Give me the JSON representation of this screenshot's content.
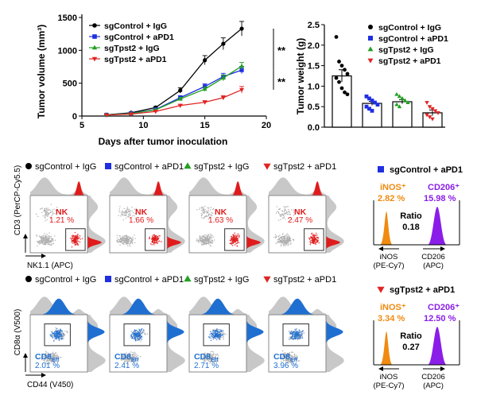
{
  "chart_data": [
    {
      "type": "line",
      "ylabel": "Tumor volume (mm³)",
      "xlabel": "Days after tumor inoculation",
      "xlim": [
        5,
        20
      ],
      "ylim": [
        0,
        1500
      ],
      "x_ticks": [
        "5",
        "10",
        "15",
        "20"
      ],
      "y_ticks": [
        "0",
        "500",
        "1000",
        "1500"
      ],
      "x": [
        7,
        9,
        11,
        13,
        15,
        16.5,
        18
      ],
      "series": [
        {
          "name": "sgControl + IgG",
          "color": "#000000",
          "marker": "circle",
          "values": [
            20,
            50,
            130,
            390,
            850,
            1100,
            1330
          ],
          "err": [
            5,
            10,
            15,
            40,
            70,
            90,
            110
          ]
        },
        {
          "name": "sgControl + aPD1",
          "color": "#1f2fe0",
          "marker": "square",
          "values": [
            18,
            40,
            100,
            280,
            450,
            600,
            700
          ],
          "err": [
            5,
            8,
            15,
            30,
            40,
            50,
            55
          ]
        },
        {
          "name": "sgTpst2 + IgG",
          "color": "#22a022",
          "marker": "triangle",
          "values": [
            18,
            38,
            95,
            260,
            410,
            580,
            760
          ],
          "err": [
            5,
            8,
            12,
            25,
            35,
            45,
            55
          ]
        },
        {
          "name": "sgTpst2 + aPD1",
          "color": "#e02424",
          "marker": "triangle-down",
          "values": [
            15,
            30,
            70,
            160,
            210,
            280,
            400
          ],
          "err": [
            4,
            6,
            10,
            20,
            25,
            30,
            50
          ]
        }
      ],
      "significance": [
        "**",
        "**"
      ]
    },
    {
      "type": "bar",
      "ylabel": "Tumor weight (g)",
      "ylim": [
        0,
        2.5
      ],
      "y_ticks": [
        "0.0",
        "0.5",
        "1.0",
        "1.5",
        "2.0",
        "2.5"
      ],
      "categories": [
        "sgControl + IgG",
        "sgControl + aPD1",
        "sgTpst2 + IgG",
        "sgTpst2 + aPD1"
      ],
      "values": [
        1.25,
        0.58,
        0.62,
        0.35
      ],
      "err": [
        0.15,
        0.05,
        0.05,
        0.07
      ],
      "points": [
        [
          2.2,
          1.6,
          1.5,
          1.4,
          1.3,
          1.2,
          1.1,
          0.95,
          0.85,
          0.8
        ],
        [
          0.75,
          0.7,
          0.65,
          0.6,
          0.55,
          0.5,
          0.45,
          0.4
        ],
        [
          0.8,
          0.75,
          0.7,
          0.65,
          0.6,
          0.55,
          0.5
        ],
        [
          0.6,
          0.5,
          0.45,
          0.4,
          0.35,
          0.3,
          0.25,
          0.2
        ]
      ],
      "colors": [
        "#000000",
        "#1f2fe0",
        "#22a022",
        "#e02424"
      ],
      "markers": [
        "circle",
        "square",
        "triangle",
        "triangle-down"
      ]
    }
  ],
  "legend": [
    "sgControl + IgG",
    "sgControl + aPD1",
    "sgTpst2 + IgG",
    "sgTpst2 + aPD1"
  ],
  "flow_row1": {
    "headers": [
      "sgControl + IgG",
      "sgControl + aPD1",
      "sgTpst2 + IgG",
      "sgTpst2 + aPD1"
    ],
    "gate_label": "NK",
    "values": [
      "1.21 %",
      "1.66 %",
      "1.63 %",
      "2.47 %"
    ],
    "y_axis": "CD3 (PerCP-Cy5.5)",
    "x_axis": "NK1.1 (APC)"
  },
  "flow_row2": {
    "headers": [
      "sgControl + IgG",
      "sgControl + aPD1",
      "sgTpst2 + IgG",
      "sgTpst2 + aPD1"
    ],
    "gate_main": "CD8",
    "gate_sub": "Eff",
    "values": [
      "2.01 %",
      "2.41 %",
      "2.71 %",
      "3.96 %"
    ],
    "y_axis": "CD8α (V500)",
    "x_axis": "CD44 (V450)"
  },
  "macro_top": {
    "title": "sgControl + aPD1",
    "inos_label": "iNOS⁺",
    "inos_value": "2.82 %",
    "cd206_label": "CD206⁺",
    "cd206_value": "15.98 %",
    "ratio_label": "Ratio",
    "ratio_value": "0.18",
    "axis_left": [
      "iNOS",
      "(PE-Cy7)"
    ],
    "axis_right": [
      "CD206",
      "(APC)"
    ]
  },
  "macro_bottom": {
    "title": "sgTpst2 + aPD1",
    "inos_label": "iNOS⁺",
    "inos_value": "3.34 %",
    "cd206_label": "CD206⁺",
    "cd206_value": "12.50 %",
    "ratio_label": "Ratio",
    "ratio_value": "0.27",
    "axis_left": [
      "iNOS",
      "(PE-Cy7)"
    ],
    "axis_right": [
      "CD206",
      "(APC)"
    ]
  },
  "colors": {
    "black": "#000000",
    "blue": "#1f2fe0",
    "green": "#22a022",
    "red": "#e02424",
    "nk_red": "#e01b1b",
    "cd8_blue": "#1f6fd1",
    "inos_orange": "#f08a10",
    "cd206_purple": "#8a1ee8"
  }
}
